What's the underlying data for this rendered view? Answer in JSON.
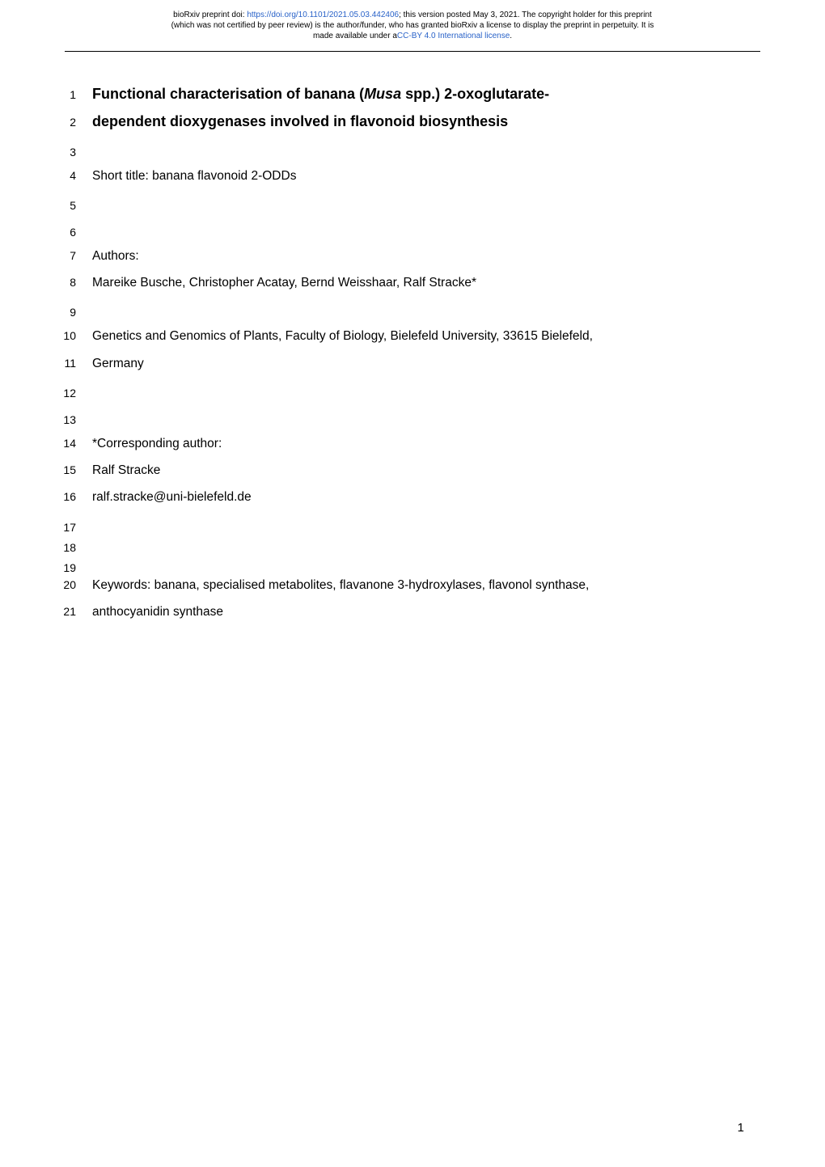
{
  "preprint_header": {
    "line1_prefix": "bioRxiv preprint doi: ",
    "doi_url": "https://doi.org/10.1101/2021.05.03.442406",
    "line1_suffix": "; this version posted May 3, 2021. The copyright holder for this preprint",
    "line2": "(which was not certified by peer review) is the author/funder, who has granted bioRxiv a license to display the preprint in perpetuity. It is",
    "line3_prefix": "made available under a",
    "license_text": "CC-BY 4.0 International license",
    "line3_suffix": "."
  },
  "lines": [
    {
      "num": "1",
      "text": "Functional characterisation of banana (<em>Musa</em> spp.) 2-oxoglutarate-",
      "class": "title-text"
    },
    {
      "num": "2",
      "text": "dependent dioxygenases involved in flavonoid biosynthesis",
      "class": "title-text"
    },
    {
      "num": "3",
      "text": "",
      "class": ""
    },
    {
      "num": "4",
      "text": "Short title: banana flavonoid 2-ODDs",
      "class": ""
    },
    {
      "num": "5",
      "text": "",
      "class": ""
    },
    {
      "num": "6",
      "text": "",
      "class": ""
    },
    {
      "num": "7",
      "text": "Authors:",
      "class": ""
    },
    {
      "num": "8",
      "text": "Mareike Busche, Christopher Acatay, Bernd Weisshaar, Ralf Stracke*",
      "class": ""
    },
    {
      "num": "9",
      "text": "",
      "class": ""
    },
    {
      "num": "10",
      "text": "Genetics and Genomics of Plants, Faculty of Biology, Bielefeld University, 33615 Bielefeld,",
      "class": "justified"
    },
    {
      "num": "11",
      "text": "Germany",
      "class": ""
    },
    {
      "num": "12",
      "text": "",
      "class": ""
    },
    {
      "num": "13",
      "text": "",
      "class": ""
    },
    {
      "num": "14",
      "text": "*Corresponding author:",
      "class": ""
    },
    {
      "num": "15",
      "text": "Ralf Stracke",
      "class": ""
    },
    {
      "num": "16",
      "text": "ralf.stracke@uni-bielefeld.de",
      "class": ""
    },
    {
      "num": "17",
      "text": "",
      "class": ""
    },
    {
      "num": "18",
      "text": "",
      "class": ""
    },
    {
      "num": "19",
      "text": "",
      "class": ""
    },
    {
      "num": "20",
      "text": "Keywords: banana, specialised metabolites, flavanone 3-hydroxylases, flavonol synthase,",
      "class": ""
    },
    {
      "num": "21",
      "text": "anthocyanidin synthase",
      "class": ""
    }
  ],
  "page_number": "1",
  "colors": {
    "link": "#2962c8",
    "text": "#000000",
    "background": "#ffffff"
  },
  "typography": {
    "body_fontsize": 15.5,
    "title_fontsize": 18,
    "linenum_fontsize": 14,
    "header_fontsize": 10,
    "pagenum_fontsize": 15
  }
}
